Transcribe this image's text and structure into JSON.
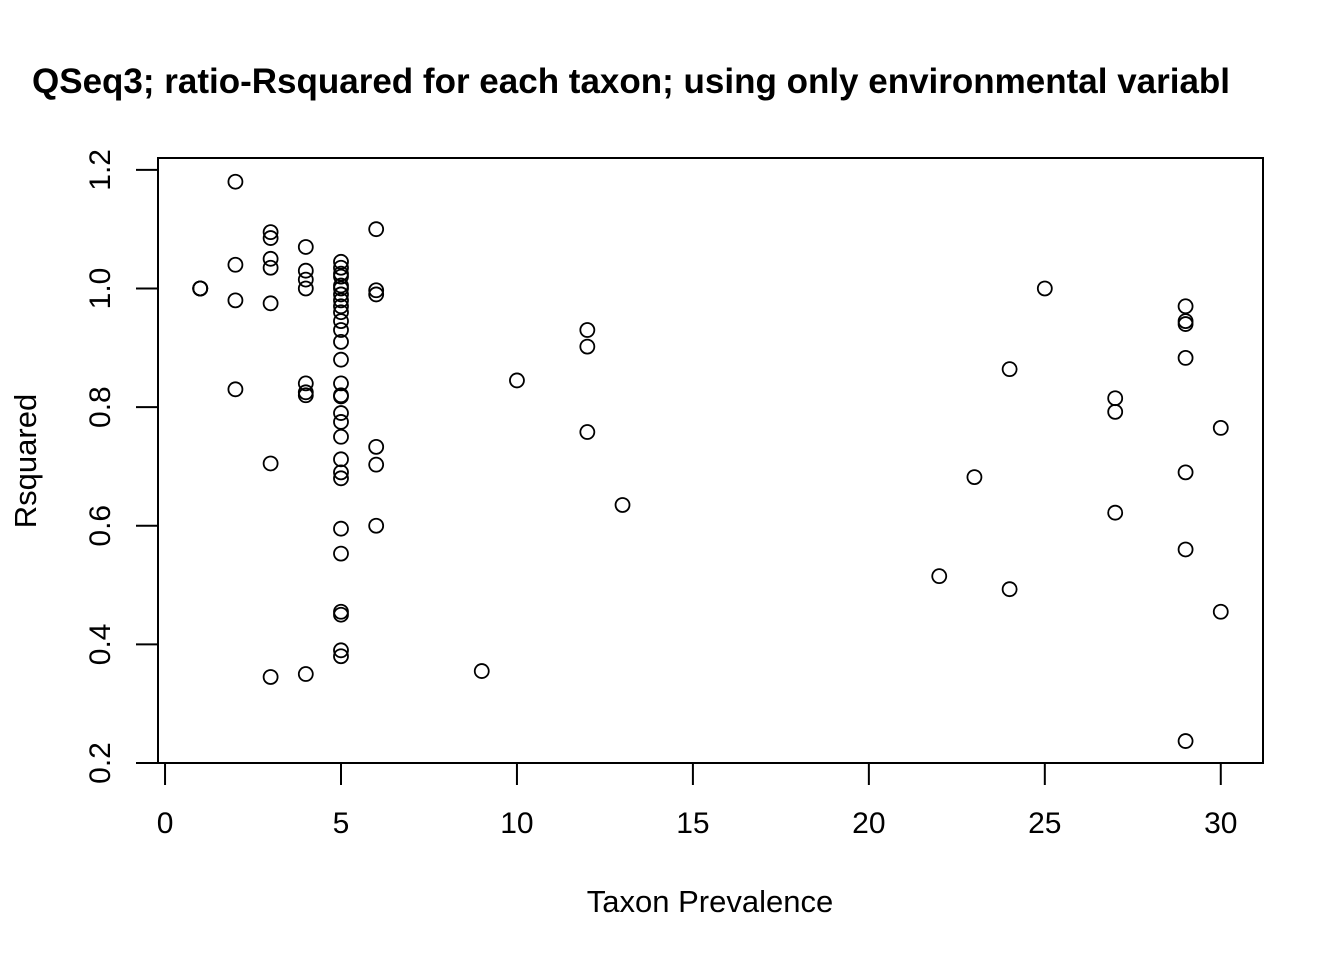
{
  "chart_data": {
    "type": "scatter",
    "title": "QSeq3; ratio-Rsquared for each taxon; using only environmental variabl",
    "xlabel": "Taxon Prevalence",
    "ylabel": "Rsquared",
    "xlim": [
      -0.2,
      31.2
    ],
    "ylim": [
      0.2,
      1.22
    ],
    "xticks": [
      0,
      5,
      10,
      15,
      20,
      25,
      30
    ],
    "yticks": [
      0.2,
      0.4,
      0.6,
      0.8,
      1.0,
      1.2
    ],
    "xtick_labels": [
      "0",
      "5",
      "10",
      "15",
      "20",
      "25",
      "30"
    ],
    "ytick_labels": [
      "0.2",
      "0.4",
      "0.6",
      "0.8",
      "1.0",
      "1.2"
    ],
    "grid": false,
    "legend": "none",
    "marker": "open-circle",
    "points": [
      {
        "x": 1,
        "y": 1.0
      },
      {
        "x": 1,
        "y": 1.0
      },
      {
        "x": 1,
        "y": 1.0
      },
      {
        "x": 1,
        "y": 1.0
      },
      {
        "x": 2,
        "y": 1.18
      },
      {
        "x": 2,
        "y": 1.04
      },
      {
        "x": 2,
        "y": 0.98
      },
      {
        "x": 2,
        "y": 0.83
      },
      {
        "x": 3,
        "y": 1.095
      },
      {
        "x": 3,
        "y": 1.085
      },
      {
        "x": 3,
        "y": 1.05
      },
      {
        "x": 3,
        "y": 1.035
      },
      {
        "x": 3,
        "y": 0.975
      },
      {
        "x": 3,
        "y": 0.705
      },
      {
        "x": 3,
        "y": 0.345
      },
      {
        "x": 4,
        "y": 1.07
      },
      {
        "x": 4,
        "y": 1.03
      },
      {
        "x": 4,
        "y": 1.015
      },
      {
        "x": 4,
        "y": 1.0
      },
      {
        "x": 4,
        "y": 0.84
      },
      {
        "x": 4,
        "y": 0.825
      },
      {
        "x": 4,
        "y": 0.82
      },
      {
        "x": 4,
        "y": 0.35
      },
      {
        "x": 5,
        "y": 1.045
      },
      {
        "x": 5,
        "y": 1.035
      },
      {
        "x": 5,
        "y": 1.025
      },
      {
        "x": 5,
        "y": 1.02
      },
      {
        "x": 5,
        "y": 1.005
      },
      {
        "x": 5,
        "y": 1.0
      },
      {
        "x": 5,
        "y": 0.99
      },
      {
        "x": 5,
        "y": 0.98
      },
      {
        "x": 5,
        "y": 0.97
      },
      {
        "x": 5,
        "y": 0.96
      },
      {
        "x": 5,
        "y": 0.945
      },
      {
        "x": 5,
        "y": 0.93
      },
      {
        "x": 5,
        "y": 0.91
      },
      {
        "x": 5,
        "y": 0.88
      },
      {
        "x": 5,
        "y": 0.84
      },
      {
        "x": 5,
        "y": 0.82
      },
      {
        "x": 5,
        "y": 0.818
      },
      {
        "x": 5,
        "y": 0.79
      },
      {
        "x": 5,
        "y": 0.775
      },
      {
        "x": 5,
        "y": 0.75
      },
      {
        "x": 5,
        "y": 0.712
      },
      {
        "x": 5,
        "y": 0.69
      },
      {
        "x": 5,
        "y": 0.68
      },
      {
        "x": 5,
        "y": 0.595
      },
      {
        "x": 5,
        "y": 0.553
      },
      {
        "x": 5,
        "y": 0.455
      },
      {
        "x": 5,
        "y": 0.45
      },
      {
        "x": 5,
        "y": 0.39
      },
      {
        "x": 5,
        "y": 0.38
      },
      {
        "x": 6,
        "y": 1.1
      },
      {
        "x": 6,
        "y": 0.997
      },
      {
        "x": 6,
        "y": 0.99
      },
      {
        "x": 6,
        "y": 0.733
      },
      {
        "x": 6,
        "y": 0.703
      },
      {
        "x": 6,
        "y": 0.6
      },
      {
        "x": 9,
        "y": 0.355
      },
      {
        "x": 10,
        "y": 0.845
      },
      {
        "x": 12,
        "y": 0.93
      },
      {
        "x": 12,
        "y": 0.902
      },
      {
        "x": 12,
        "y": 0.758
      },
      {
        "x": 13,
        "y": 0.635
      },
      {
        "x": 22,
        "y": 0.515
      },
      {
        "x": 23,
        "y": 0.682
      },
      {
        "x": 24,
        "y": 0.864
      },
      {
        "x": 24,
        "y": 0.493
      },
      {
        "x": 25,
        "y": 1.0
      },
      {
        "x": 27,
        "y": 0.815
      },
      {
        "x": 27,
        "y": 0.792
      },
      {
        "x": 27,
        "y": 0.622
      },
      {
        "x": 29,
        "y": 0.97
      },
      {
        "x": 29,
        "y": 0.945
      },
      {
        "x": 29,
        "y": 0.94
      },
      {
        "x": 29,
        "y": 0.883
      },
      {
        "x": 29,
        "y": 0.69
      },
      {
        "x": 29,
        "y": 0.56
      },
      {
        "x": 29,
        "y": 0.237
      },
      {
        "x": 30,
        "y": 0.765
      },
      {
        "x": 30,
        "y": 0.455
      }
    ]
  }
}
